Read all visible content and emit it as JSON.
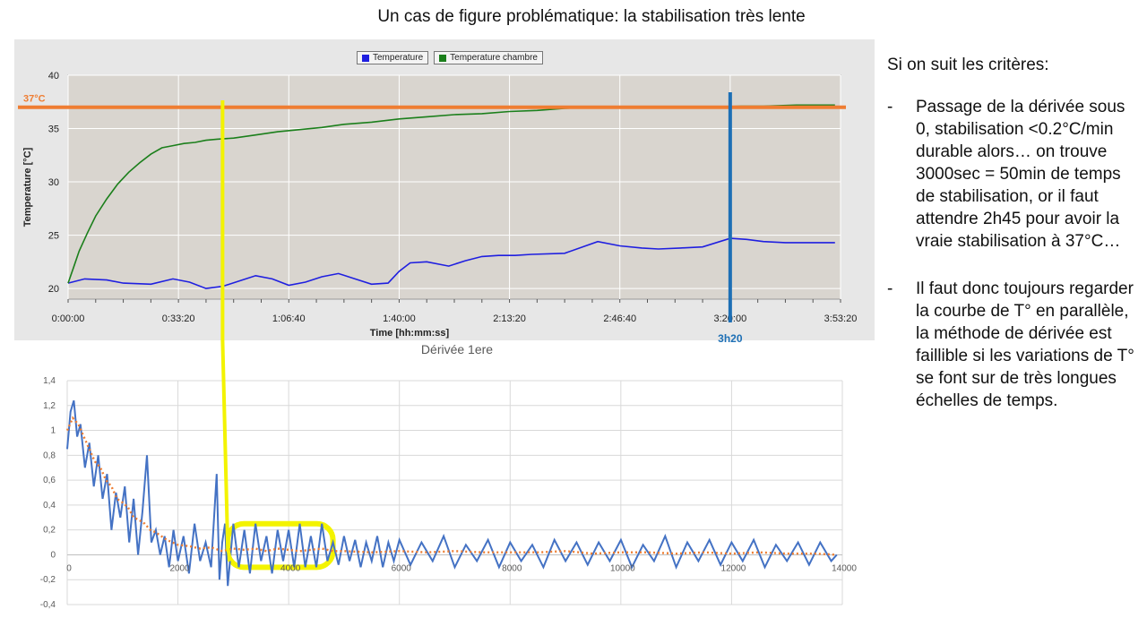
{
  "slide": {
    "title": "Un cas de figure problématique: la stabilisation très lente"
  },
  "colors": {
    "temperature": "#1f1fe0",
    "temperature_chambre": "#1b7f1b",
    "target_line": "#ef7d32",
    "marker_3h20": "#1d6fb5",
    "highlight": "#f3f300",
    "derivee": "#4472c4",
    "derivee_avg": "#ed7d31"
  },
  "annotations": {
    "target_label": "37°C",
    "marker_label": "3h20"
  },
  "right": {
    "intro": "Si on suit les critères:",
    "bullets": [
      {
        "dash": "-",
        "text": "Passage de la dérivée sous 0, stabilisation <0.2°C/min durable alors… on trouve 3000sec = 50min de temps de stabilisation, or il faut attendre 2h45 pour avoir la vraie stabilisation à 37°C…"
      },
      {
        "dash": "-",
        "text": "Il faut donc toujours regarder la courbe de T° en parallèle, la méthode de dérivée est faillible si les variations de T° se font sur de très longues échelles de temps."
      }
    ]
  },
  "chart_data": [
    {
      "type": "line",
      "title": "",
      "xlabel": "Time [hh:mm:ss]",
      "ylabel": "Temperature [°C]",
      "xlim": [
        0,
        14000
      ],
      "ylim": [
        19,
        40
      ],
      "xticks": [
        0,
        2000,
        4000,
        6000,
        8000,
        10000,
        12000,
        14000
      ],
      "xtick_labels": [
        "0:00:00",
        "0:33:20",
        "1:06:40",
        "1:40:00",
        "2:13:20",
        "2:46:40",
        "3:20:00",
        "3:53:20"
      ],
      "yticks": [
        20,
        25,
        30,
        35,
        40
      ],
      "grid": true,
      "legend": "top-center",
      "series": [
        {
          "name": "Temperature",
          "x": [
            0,
            300,
            700,
            1000,
            1500,
            1900,
            2200,
            2500,
            2800,
            3100,
            3400,
            3700,
            4000,
            4300,
            4600,
            4900,
            5200,
            5500,
            5800,
            6000,
            6200,
            6500,
            6900,
            7200,
            7500,
            7800,
            8100,
            8400,
            9000,
            9600,
            10000,
            10400,
            10700,
            11100,
            11500,
            12000,
            12300,
            12600,
            13000,
            13500,
            13900
          ],
          "y": [
            20.5,
            20.9,
            20.8,
            20.5,
            20.4,
            20.9,
            20.6,
            20.0,
            20.2,
            20.7,
            21.2,
            20.9,
            20.3,
            20.6,
            21.1,
            21.4,
            20.9,
            20.4,
            20.5,
            21.6,
            22.4,
            22.5,
            22.1,
            22.6,
            23.0,
            23.1,
            23.1,
            23.2,
            23.3,
            24.4,
            24.0,
            23.8,
            23.7,
            23.8,
            23.9,
            24.7,
            24.6,
            24.4,
            24.3,
            24.3,
            24.3
          ]
        },
        {
          "name": "Temperature chambre",
          "x": [
            0,
            100,
            200,
            350,
            500,
            700,
            900,
            1100,
            1300,
            1500,
            1700,
            1900,
            2100,
            2300,
            2500,
            2700,
            3000,
            3400,
            3800,
            4200,
            4600,
            5000,
            5500,
            6000,
            6500,
            7000,
            7500,
            8000,
            8500,
            9000,
            9600,
            10200,
            10800,
            11500,
            12200,
            12600,
            13200,
            13900
          ],
          "y": [
            20.5,
            22.0,
            23.5,
            25.2,
            26.8,
            28.4,
            29.8,
            30.9,
            31.8,
            32.6,
            33.2,
            33.4,
            33.6,
            33.7,
            33.9,
            34.0,
            34.1,
            34.4,
            34.7,
            34.9,
            35.1,
            35.4,
            35.6,
            35.9,
            36.1,
            36.3,
            36.4,
            36.6,
            36.7,
            36.9,
            37.0,
            37.0,
            37.0,
            37.0,
            37.1,
            37.1,
            37.2,
            37.2
          ]
        }
      ],
      "reference_line": {
        "y": 37,
        "label": "37°C"
      },
      "marker_line": {
        "x": 12000,
        "label": "3h20"
      },
      "highlight_line": {
        "x": 2800
      }
    },
    {
      "type": "line",
      "title": "Dérivée 1ere",
      "xlim": [
        0,
        14000
      ],
      "ylim": [
        -0.4,
        1.4
      ],
      "xticks": [
        0,
        2000,
        4000,
        6000,
        8000,
        10000,
        12000,
        14000
      ],
      "yticks": [
        -0.4,
        -0.2,
        0,
        0.2,
        0.4,
        0.6,
        0.8,
        1,
        1.2,
        1.4
      ],
      "ytick_labels": [
        "-0,4",
        "-0,2",
        "0",
        "0,2",
        "0,4",
        "0,6",
        "0,8",
        "1",
        "1,2",
        "1,4"
      ],
      "grid": true,
      "highlight_region": {
        "x": [
          2900,
          4800
        ],
        "y": [
          -0.1,
          0.25
        ]
      },
      "series": [
        {
          "style": "solid",
          "x": [
            0,
            60,
            120,
            180,
            240,
            320,
            400,
            480,
            560,
            640,
            720,
            800,
            880,
            960,
            1040,
            1120,
            1200,
            1280,
            1360,
            1440,
            1520,
            1600,
            1680,
            1760,
            1840,
            1920,
            2000,
            2100,
            2200,
            2300,
            2400,
            2500,
            2600,
            2700,
            2750,
            2800,
            2850,
            2900,
            3000,
            3100,
            3200,
            3300,
            3400,
            3500,
            3600,
            3700,
            3800,
            3900,
            4000,
            4100,
            4200,
            4300,
            4400,
            4500,
            4600,
            4700,
            4800,
            4900,
            5000,
            5100,
            5200,
            5300,
            5400,
            5500,
            5600,
            5700,
            5800,
            5900,
            6000,
            6200,
            6400,
            6600,
            6800,
            7000,
            7200,
            7400,
            7600,
            7800,
            8000,
            8200,
            8400,
            8600,
            8800,
            9000,
            9200,
            9400,
            9600,
            9800,
            10000,
            10200,
            10400,
            10600,
            10800,
            11000,
            11200,
            11400,
            11600,
            11800,
            12000,
            12200,
            12400,
            12600,
            12800,
            13000,
            13200,
            13400,
            13600,
            13800,
            13900
          ],
          "y": [
            0.85,
            1.15,
            1.24,
            0.95,
            1.05,
            0.7,
            0.9,
            0.55,
            0.8,
            0.45,
            0.65,
            0.2,
            0.5,
            0.3,
            0.55,
            0.1,
            0.45,
            0.0,
            0.35,
            0.8,
            0.1,
            0.2,
            0.0,
            0.15,
            -0.1,
            0.2,
            -0.05,
            0.15,
            -0.15,
            0.25,
            -0.05,
            0.1,
            -0.1,
            0.65,
            -0.2,
            0.1,
            0.25,
            -0.25,
            0.25,
            -0.1,
            0.2,
            -0.15,
            0.25,
            -0.05,
            0.15,
            -0.15,
            0.2,
            -0.05,
            0.2,
            -0.1,
            0.25,
            -0.1,
            0.15,
            -0.1,
            0.25,
            -0.05,
            0.1,
            -0.08,
            0.15,
            -0.05,
            0.12,
            -0.1,
            0.1,
            -0.05,
            0.15,
            -0.1,
            0.1,
            -0.05,
            0.12,
            -0.08,
            0.1,
            -0.05,
            0.15,
            -0.1,
            0.08,
            -0.05,
            0.12,
            -0.1,
            0.1,
            -0.05,
            0.08,
            -0.1,
            0.12,
            -0.05,
            0.1,
            -0.08,
            0.1,
            -0.05,
            0.12,
            -0.1,
            0.08,
            -0.05,
            0.15,
            -0.1,
            0.1,
            -0.05,
            0.12,
            -0.08,
            0.1,
            -0.05,
            0.12,
            -0.1,
            0.08,
            -0.05,
            0.1,
            -0.08,
            0.1,
            -0.05,
            0.0
          ]
        },
        {
          "style": "dotted",
          "x": [
            0,
            100,
            200,
            300,
            400,
            500,
            600,
            700,
            800,
            900,
            1000,
            1100,
            1200,
            1300,
            1400,
            1500,
            1600,
            1700,
            1800,
            1900,
            2000,
            2200,
            2400,
            2600,
            2800,
            3000,
            3200,
            3400,
            3600,
            3800,
            4000,
            4200,
            4400,
            4600,
            4800,
            5000,
            5500,
            6000,
            6500,
            7000,
            7500,
            8000,
            8500,
            9000,
            9500,
            10000,
            10500,
            11000,
            11500,
            12000,
            12500,
            13000,
            13500,
            13900
          ],
          "y": [
            1.0,
            1.1,
            1.05,
            0.95,
            0.85,
            0.75,
            0.7,
            0.6,
            0.55,
            0.45,
            0.42,
            0.38,
            0.3,
            0.28,
            0.25,
            0.2,
            0.18,
            0.15,
            0.12,
            0.1,
            0.08,
            0.07,
            0.05,
            0.06,
            0.03,
            0.05,
            0.04,
            0.05,
            0.03,
            0.05,
            0.04,
            0.03,
            0.04,
            0.05,
            0.03,
            0.03,
            0.02,
            0.03,
            0.02,
            0.03,
            0.02,
            0.02,
            0.02,
            0.03,
            0.01,
            0.02,
            0.02,
            0.01,
            0.02,
            0.01,
            0.02,
            0.01,
            0.01,
            0.0
          ]
        }
      ]
    }
  ]
}
